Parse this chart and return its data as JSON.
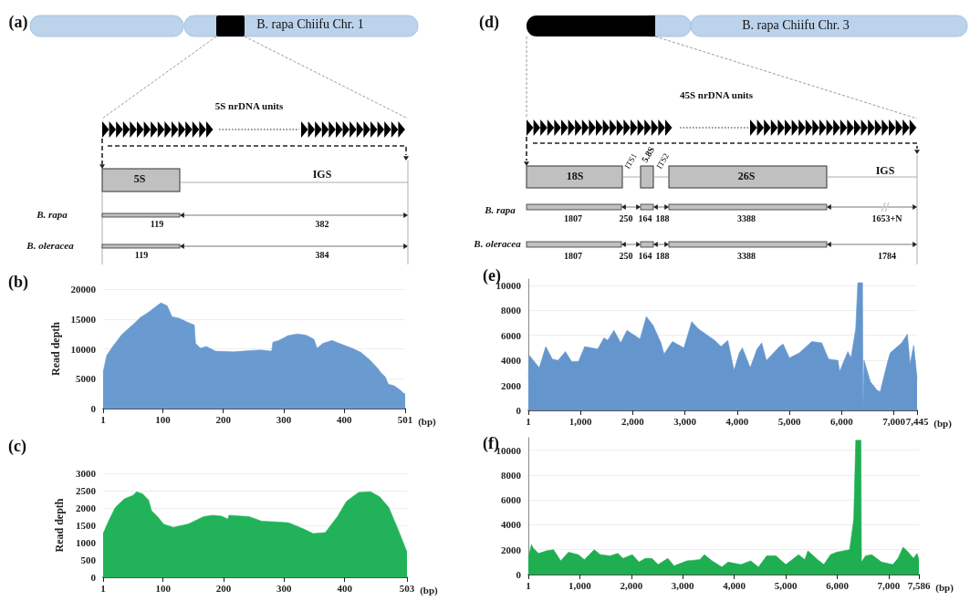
{
  "chart_data": [
    {
      "type": "other",
      "title": "(a)",
      "annotations": [
        "B. rapa Chiifu Chr. 1",
        "5S nrDNA units",
        "5S",
        "IGS",
        "B. rapa",
        "119",
        "382",
        "B. oleracea",
        "119",
        "384"
      ]
    },
    {
      "type": "other",
      "title": "(d)",
      "annotations": [
        "B. rapa Chiifu Chr. 3",
        "45S nrDNA units",
        "18S",
        "ITS1",
        "5.8S",
        "ITS2",
        "26S",
        "IGS",
        "B. rapa",
        "1807",
        "250",
        "164",
        "188",
        "3388",
        "1653+N",
        "B. oleracea",
        "1807",
        "250",
        "164",
        "188",
        "3388",
        "1784"
      ]
    },
    {
      "type": "area",
      "title": "(b)",
      "ylabel": "Read depth",
      "xlabel": "(bp)",
      "color": "#6a9bd0",
      "grid": "y",
      "x": [
        1,
        7,
        17,
        32,
        52,
        62,
        77,
        90,
        97,
        107,
        115,
        127,
        142,
        152,
        154,
        162,
        172,
        187,
        218,
        243,
        263,
        280,
        282,
        292,
        307,
        322,
        337,
        350,
        355,
        365,
        380,
        392,
        413,
        428,
        443,
        455,
        460,
        468,
        473,
        483,
        494,
        499,
        501
      ],
      "values": [
        6100,
        8900,
        10400,
        12400,
        14200,
        15200,
        16200,
        17200,
        17700,
        17200,
        15400,
        15100,
        14400,
        14000,
        10900,
        10100,
        10400,
        9600,
        9500,
        9700,
        9800,
        9600,
        11100,
        11400,
        12200,
        12500,
        12300,
        11600,
        10100,
        10900,
        11400,
        10900,
        10100,
        9400,
        8100,
        6800,
        6100,
        5300,
        4100,
        3800,
        3000,
        2500,
        2500
      ],
      "xlim": [
        1,
        501
      ],
      "xticks": [
        1,
        100,
        200,
        300,
        400,
        501
      ],
      "ylim": [
        0,
        20000
      ],
      "yticks": [
        0,
        5000,
        10000,
        15000,
        20000
      ]
    },
    {
      "type": "area",
      "title": "(e)",
      "xlabel": "(bp)",
      "color": "#6496cd",
      "grid": "y",
      "x": [
        1,
        20,
        210,
        335,
        460,
        570,
        710,
        830,
        960,
        1080,
        1330,
        1450,
        1520,
        1640,
        1770,
        1890,
        2140,
        2260,
        2390,
        2540,
        2600,
        2760,
        2980,
        3130,
        3260,
        3570,
        3690,
        3820,
        3880,
        3940,
        4040,
        4100,
        4250,
        4380,
        4470,
        4560,
        4810,
        4880,
        5000,
        5190,
        5430,
        5620,
        5750,
        5930,
        5960,
        6120,
        6180,
        6270,
        6310,
        6400,
        6410,
        6430,
        6550,
        6680,
        6740,
        6870,
        6930,
        7150,
        7260,
        7310,
        7380,
        7445
      ],
      "values": [
        2600,
        4400,
        3400,
        5100,
        4100,
        4000,
        4700,
        3900,
        3900,
        5100,
        4900,
        5800,
        5600,
        6400,
        5400,
        6400,
        5700,
        7500,
        6800,
        5400,
        4500,
        5500,
        5000,
        7100,
        6500,
        5600,
        5100,
        5600,
        4400,
        3200,
        4600,
        5000,
        3400,
        4900,
        5400,
        4000,
        5100,
        5300,
        4200,
        4600,
        5500,
        5400,
        4100,
        4000,
        3100,
        4700,
        4200,
        6500,
        10200,
        10200,
        0,
        4000,
        2300,
        1600,
        1500,
        3700,
        4600,
        5400,
        6100,
        3700,
        5200,
        2600
      ],
      "xlim": [
        1,
        7445
      ],
      "xticks": [
        1,
        {
          "value": 1000,
          "label": "1,000"
        },
        {
          "value": 2000,
          "label": "2,000"
        },
        {
          "value": 3000,
          "label": "3,000"
        },
        {
          "value": 4000,
          "label": "4,000"
        },
        {
          "value": 5000,
          "label": "5,000"
        },
        {
          "value": 6000,
          "label": "6,000"
        },
        {
          "value": 7000,
          "label": "7,000"
        },
        {
          "value": 7445,
          "label": "7,445"
        }
      ],
      "ylim": [
        0,
        10500
      ],
      "yticks": [
        0,
        2000,
        4000,
        6000,
        8000,
        10000
      ]
    },
    {
      "type": "area",
      "title": "(c)",
      "ylabel": "Read depth",
      "xlabel": "(bp)",
      "color": "#22b35a",
      "grid": "y",
      "x": [
        1,
        11,
        21,
        36,
        51,
        56,
        66,
        76,
        81,
        91,
        101,
        117,
        142,
        167,
        182,
        197,
        207,
        209,
        242,
        263,
        293,
        308,
        333,
        348,
        368,
        388,
        403,
        423,
        443,
        458,
        473,
        488,
        503
      ],
      "values": [
        1260,
        1660,
        2010,
        2260,
        2370,
        2470,
        2410,
        2230,
        1920,
        1750,
        1530,
        1440,
        1540,
        1750,
        1790,
        1760,
        1680,
        1790,
        1750,
        1620,
        1590,
        1570,
        1390,
        1260,
        1290,
        1750,
        2190,
        2450,
        2470,
        2320,
        2010,
        1390,
        730
      ],
      "xlim": [
        1,
        503
      ],
      "xticks": [
        1,
        100,
        200,
        300,
        400,
        503
      ],
      "ylim": [
        0,
        3000
      ],
      "yticks": [
        0,
        500,
        1000,
        1500,
        2000,
        2500,
        3000
      ]
    },
    {
      "type": "area",
      "title": "(f)",
      "xlabel": "(bp)",
      "color": "#1fae50",
      "grid": "y",
      "x": [
        1,
        60,
        100,
        200,
        350,
        490,
        630,
        780,
        970,
        1090,
        1280,
        1400,
        1590,
        1740,
        1840,
        2020,
        2150,
        2270,
        2400,
        2520,
        2710,
        2830,
        3080,
        3330,
        3420,
        3570,
        3760,
        3880,
        4130,
        4320,
        4470,
        4630,
        4810,
        5000,
        5250,
        5370,
        5430,
        5620,
        5740,
        5870,
        5990,
        6240,
        6320,
        6360,
        6460,
        6470,
        6550,
        6670,
        6860,
        7080,
        7180,
        7280,
        7380,
        7480,
        7550,
        7586
      ],
      "values": [
        1340,
        2400,
        2100,
        1700,
        1900,
        2000,
        1100,
        1800,
        1600,
        1200,
        2000,
        1600,
        1500,
        1700,
        1300,
        1600,
        1000,
        1300,
        1300,
        800,
        1300,
        700,
        1100,
        1200,
        1600,
        1100,
        600,
        1000,
        800,
        1100,
        600,
        1500,
        1500,
        800,
        1600,
        1200,
        1900,
        1200,
        800,
        1600,
        1800,
        2000,
        4400,
        10800,
        10800,
        1000,
        1500,
        1600,
        1000,
        800,
        1300,
        2200,
        1800,
        1300,
        1700,
        1200
      ],
      "xlim": [
        1,
        7586
      ],
      "xticks": [
        1,
        {
          "value": 1000,
          "label": "1,000"
        },
        {
          "value": 2000,
          "label": "2,000"
        },
        {
          "value": 3000,
          "label": "3,000"
        },
        {
          "value": 4000,
          "label": "4,000"
        },
        {
          "value": 5000,
          "label": "5,000"
        },
        {
          "value": 6000,
          "label": "6,000"
        },
        {
          "value": 7000,
          "label": "7,000"
        },
        {
          "value": 7586,
          "label": "7,586"
        }
      ],
      "ylim": [
        0,
        11000
      ],
      "yticks": [
        0,
        2000,
        4000,
        6000,
        8000,
        10000
      ]
    }
  ]
}
